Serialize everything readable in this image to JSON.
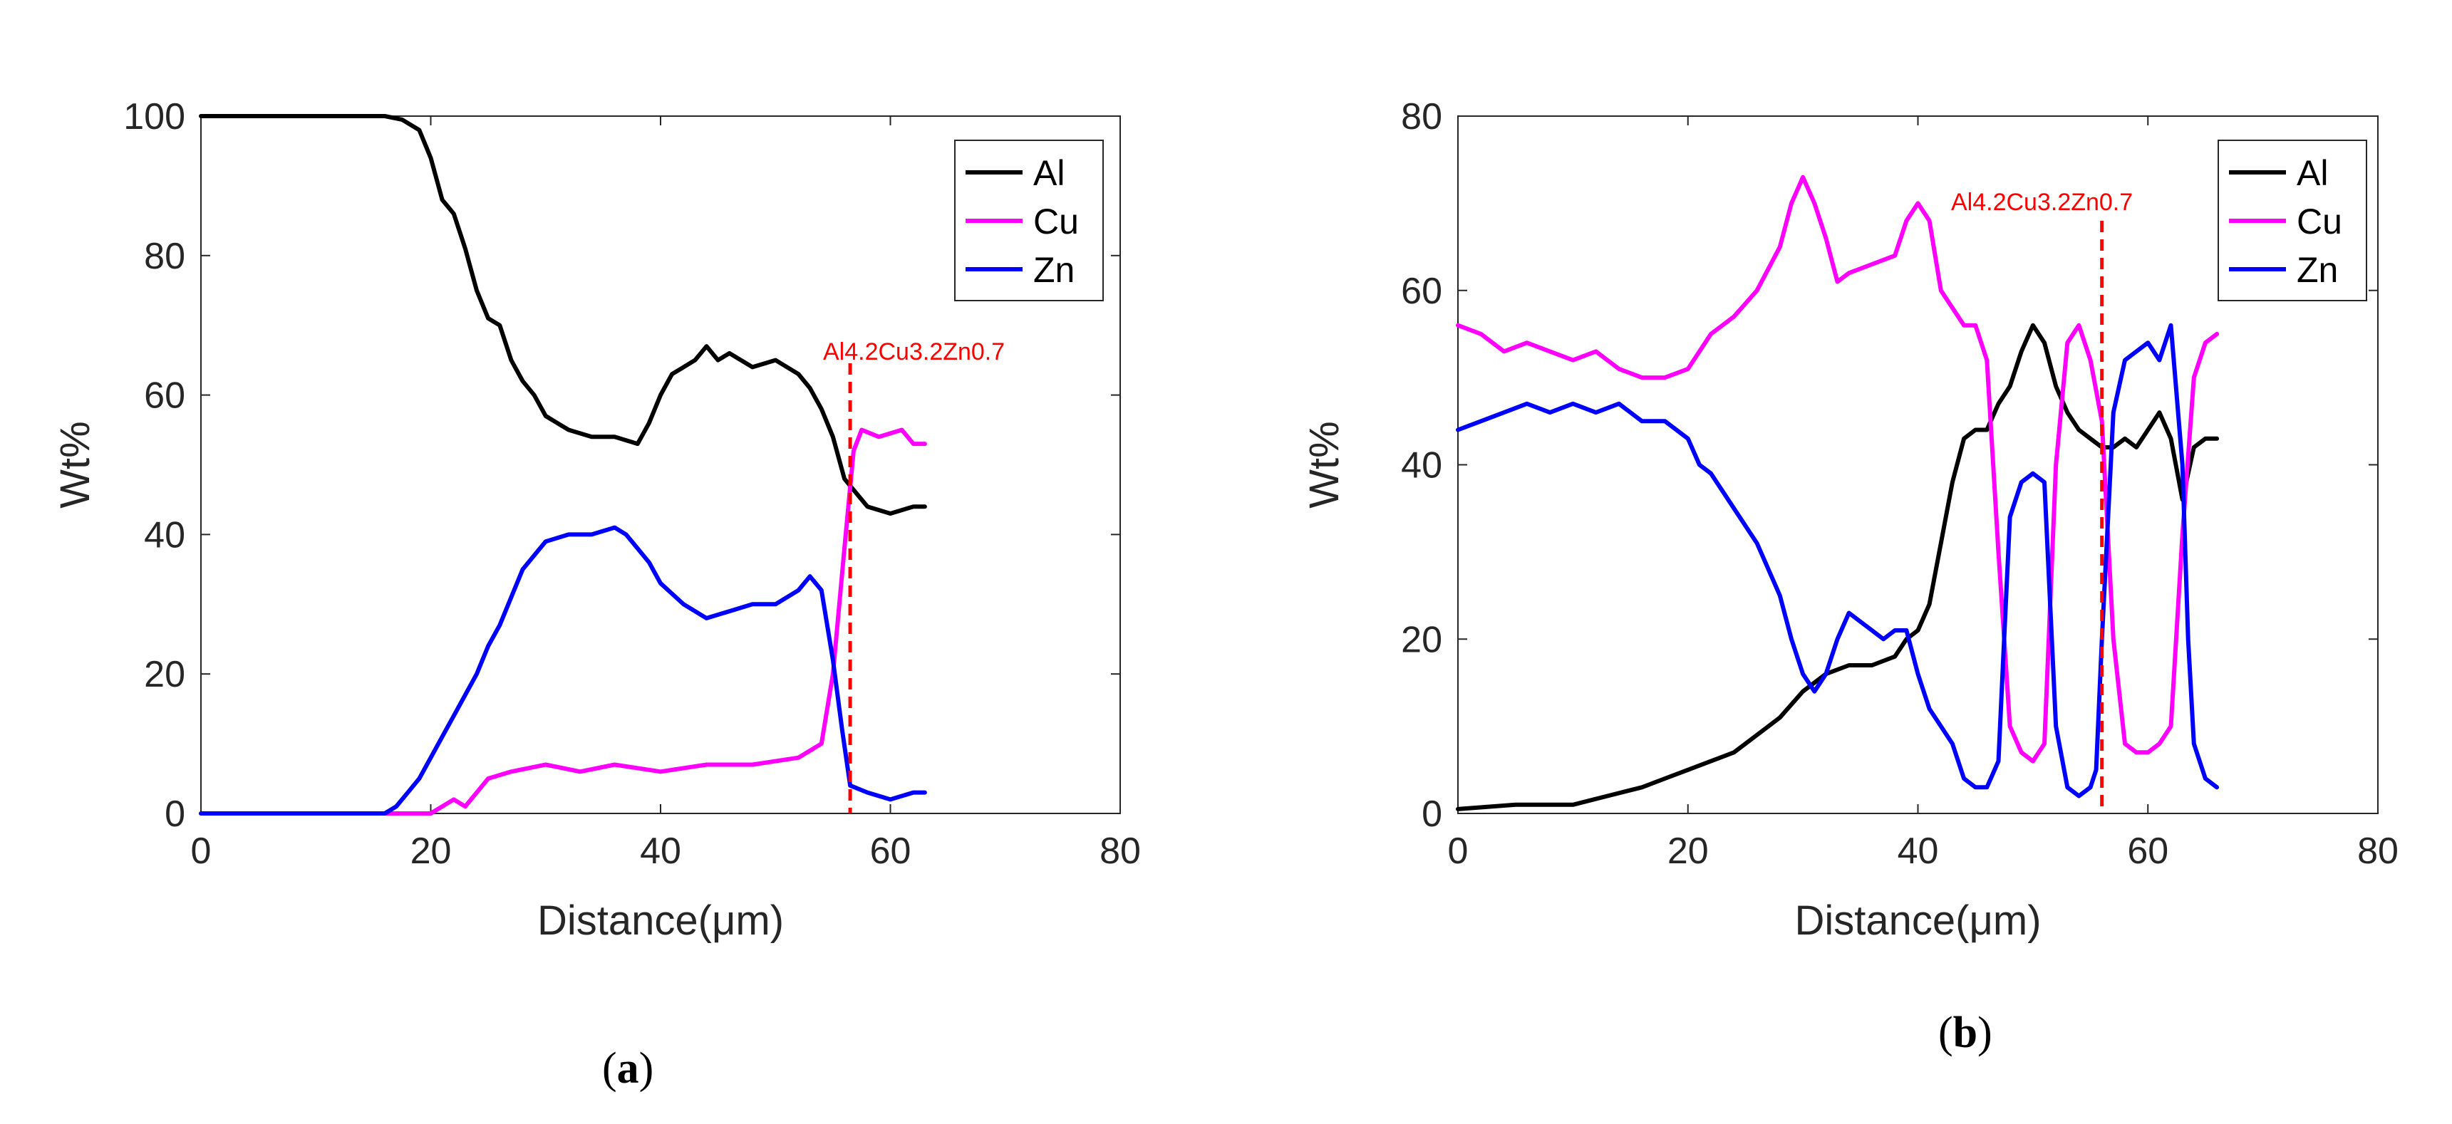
{
  "chart_data": [
    {
      "type": "line",
      "panel_label": "a",
      "caption": "(a)",
      "xlabel": "Distance(μm)",
      "ylabel": "Wt%",
      "xlim": [
        0,
        80
      ],
      "ylim": [
        0,
        100
      ],
      "xticks": [
        "0",
        "20",
        "40",
        "60",
        "80"
      ],
      "yticks": [
        "0",
        "20",
        "40",
        "60",
        "80",
        "100"
      ],
      "legend_position": "top-right",
      "annotation": {
        "text": "Al4.2Cu3.2Zn0.7",
        "x": 56.5,
        "color": "#ff0000"
      },
      "series": [
        {
          "name": "Al",
          "color": "#000000",
          "points": [
            [
              0,
              100
            ],
            [
              16,
              100
            ],
            [
              17.5,
              99.5
            ],
            [
              19,
              98
            ],
            [
              20,
              94
            ],
            [
              21,
              88
            ],
            [
              22,
              86
            ],
            [
              23,
              81
            ],
            [
              24,
              75
            ],
            [
              25,
              71
            ],
            [
              26,
              70
            ],
            [
              27,
              65
            ],
            [
              28,
              62
            ],
            [
              29,
              60
            ],
            [
              30,
              57
            ],
            [
              31,
              56
            ],
            [
              32,
              55
            ],
            [
              34,
              54
            ],
            [
              36,
              54
            ],
            [
              38,
              53
            ],
            [
              39,
              56
            ],
            [
              40,
              60
            ],
            [
              41,
              63
            ],
            [
              42,
              64
            ],
            [
              43,
              65
            ],
            [
              44,
              67
            ],
            [
              45,
              65
            ],
            [
              46,
              66
            ],
            [
              48,
              64
            ],
            [
              50,
              65
            ],
            [
              52,
              63
            ],
            [
              53,
              61
            ],
            [
              54,
              58
            ],
            [
              55,
              54
            ],
            [
              56,
              48
            ],
            [
              57,
              46
            ],
            [
              58,
              44
            ],
            [
              60,
              43
            ],
            [
              62,
              44
            ],
            [
              63,
              44
            ]
          ]
        },
        {
          "name": "Cu",
          "color": "#ff00ff",
          "points": [
            [
              0,
              0
            ],
            [
              17,
              0
            ],
            [
              20,
              0
            ],
            [
              21,
              1
            ],
            [
              22,
              2
            ],
            [
              23,
              1
            ],
            [
              24,
              3
            ],
            [
              25,
              5
            ],
            [
              27,
              6
            ],
            [
              30,
              7
            ],
            [
              33,
              6
            ],
            [
              36,
              7
            ],
            [
              40,
              6
            ],
            [
              44,
              7
            ],
            [
              48,
              7
            ],
            [
              52,
              8
            ],
            [
              54,
              10
            ],
            [
              55,
              20
            ],
            [
              56,
              38
            ],
            [
              56.8,
              52
            ],
            [
              57.5,
              55
            ],
            [
              59,
              54
            ],
            [
              61,
              55
            ],
            [
              62,
              53
            ],
            [
              63,
              53
            ]
          ]
        },
        {
          "name": "Zn",
          "color": "#0000ff",
          "points": [
            [
              0,
              0
            ],
            [
              16,
              0
            ],
            [
              17,
              1
            ],
            [
              18,
              3
            ],
            [
              19,
              5
            ],
            [
              20,
              8
            ],
            [
              21,
              11
            ],
            [
              22,
              14
            ],
            [
              23,
              17
            ],
            [
              24,
              20
            ],
            [
              25,
              24
            ],
            [
              26,
              27
            ],
            [
              27,
              31
            ],
            [
              28,
              35
            ],
            [
              29,
              37
            ],
            [
              30,
              39
            ],
            [
              32,
              40
            ],
            [
              34,
              40
            ],
            [
              36,
              41
            ],
            [
              37,
              40
            ],
            [
              38,
              38
            ],
            [
              39,
              36
            ],
            [
              40,
              33
            ],
            [
              42,
              30
            ],
            [
              44,
              28
            ],
            [
              46,
              29
            ],
            [
              48,
              30
            ],
            [
              50,
              30
            ],
            [
              52,
              32
            ],
            [
              53,
              34
            ],
            [
              54,
              32
            ],
            [
              55,
              22
            ],
            [
              55.8,
              12
            ],
            [
              56.5,
              4
            ],
            [
              58,
              3
            ],
            [
              60,
              2
            ],
            [
              62,
              3
            ],
            [
              63,
              3
            ]
          ]
        }
      ]
    },
    {
      "type": "line",
      "panel_label": "b",
      "caption": "(b)",
      "xlabel": "Distance(μm)",
      "ylabel": "Wt%",
      "xlim": [
        0,
        80
      ],
      "ylim": [
        0,
        80
      ],
      "xticks": [
        "0",
        "20",
        "40",
        "60",
        "80"
      ],
      "yticks": [
        "0",
        "20",
        "40",
        "60",
        "80"
      ],
      "legend_position": "top-right",
      "annotation": {
        "text": "Al4.2Cu3.2Zn0.7",
        "x": 56,
        "color": "#ff0000"
      },
      "series": [
        {
          "name": "Al",
          "color": "#000000",
          "points": [
            [
              0,
              0.5
            ],
            [
              5,
              1
            ],
            [
              10,
              1
            ],
            [
              13,
              2
            ],
            [
              16,
              3
            ],
            [
              18,
              4
            ],
            [
              20,
              5
            ],
            [
              22,
              6
            ],
            [
              24,
              7
            ],
            [
              26,
              9
            ],
            [
              28,
              11
            ],
            [
              30,
              14
            ],
            [
              32,
              16
            ],
            [
              34,
              17
            ],
            [
              36,
              17
            ],
            [
              38,
              18
            ],
            [
              39,
              20
            ],
            [
              40,
              21
            ],
            [
              41,
              24
            ],
            [
              42,
              31
            ],
            [
              43,
              38
            ],
            [
              44,
              43
            ],
            [
              45,
              44
            ],
            [
              46,
              44
            ],
            [
              47,
              47
            ],
            [
              48,
              49
            ],
            [
              49,
              53
            ],
            [
              50,
              56
            ],
            [
              51,
              54
            ],
            [
              52,
              49
            ],
            [
              53,
              46
            ],
            [
              54,
              44
            ],
            [
              55,
              43
            ],
            [
              56,
              42
            ],
            [
              57,
              42
            ],
            [
              58,
              43
            ],
            [
              59,
              42
            ],
            [
              60,
              44
            ],
            [
              61,
              46
            ],
            [
              62,
              43
            ],
            [
              63,
              36
            ],
            [
              64,
              42
            ],
            [
              65,
              43
            ],
            [
              66,
              43
            ]
          ]
        },
        {
          "name": "Cu",
          "color": "#ff00ff",
          "points": [
            [
              0,
              56
            ],
            [
              2,
              55
            ],
            [
              4,
              53
            ],
            [
              6,
              54
            ],
            [
              8,
              53
            ],
            [
              10,
              52
            ],
            [
              12,
              53
            ],
            [
              14,
              51
            ],
            [
              16,
              50
            ],
            [
              18,
              50
            ],
            [
              20,
              51
            ],
            [
              22,
              55
            ],
            [
              24,
              57
            ],
            [
              26,
              60
            ],
            [
              28,
              65
            ],
            [
              29,
              70
            ],
            [
              30,
              73
            ],
            [
              31,
              70
            ],
            [
              32,
              66
            ],
            [
              33,
              61
            ],
            [
              34,
              62
            ],
            [
              36,
              63
            ],
            [
              38,
              64
            ],
            [
              39,
              68
            ],
            [
              40,
              70
            ],
            [
              41,
              68
            ],
            [
              42,
              60
            ],
            [
              43,
              58
            ],
            [
              44,
              56
            ],
            [
              45,
              56
            ],
            [
              46,
              52
            ],
            [
              47,
              30
            ],
            [
              48,
              10
            ],
            [
              49,
              7
            ],
            [
              50,
              6
            ],
            [
              51,
              8
            ],
            [
              52,
              40
            ],
            [
              53,
              54
            ],
            [
              54,
              56
            ],
            [
              55,
              52
            ],
            [
              56,
              45
            ],
            [
              57,
              20
            ],
            [
              58,
              8
            ],
            [
              59,
              7
            ],
            [
              60,
              7
            ],
            [
              61,
              8
            ],
            [
              62,
              10
            ],
            [
              63,
              32
            ],
            [
              64,
              50
            ],
            [
              65,
              54
            ],
            [
              66,
              55
            ]
          ]
        },
        {
          "name": "Zn",
          "color": "#0000ff",
          "points": [
            [
              0,
              44
            ],
            [
              2,
              45
            ],
            [
              4,
              46
            ],
            [
              6,
              47
            ],
            [
              8,
              46
            ],
            [
              10,
              47
            ],
            [
              12,
              46
            ],
            [
              14,
              47
            ],
            [
              16,
              45
            ],
            [
              18,
              45
            ],
            [
              20,
              43
            ],
            [
              21,
              40
            ],
            [
              22,
              39
            ],
            [
              24,
              35
            ],
            [
              26,
              31
            ],
            [
              28,
              25
            ],
            [
              29,
              20
            ],
            [
              30,
              16
            ],
            [
              31,
              14
            ],
            [
              32,
              16
            ],
            [
              33,
              20
            ],
            [
              34,
              23
            ],
            [
              35,
              22
            ],
            [
              36,
              21
            ],
            [
              37,
              20
            ],
            [
              38,
              21
            ],
            [
              39,
              21
            ],
            [
              40,
              16
            ],
            [
              41,
              12
            ],
            [
              42,
              10
            ],
            [
              43,
              8
            ],
            [
              44,
              4
            ],
            [
              45,
              3
            ],
            [
              46,
              3
            ],
            [
              47,
              6
            ],
            [
              47.5,
              20
            ],
            [
              48,
              34
            ],
            [
              49,
              38
            ],
            [
              50,
              39
            ],
            [
              51,
              38
            ],
            [
              52,
              10
            ],
            [
              53,
              3
            ],
            [
              54,
              2
            ],
            [
              55,
              3
            ],
            [
              55.5,
              5
            ],
            [
              56,
              20
            ],
            [
              57,
              46
            ],
            [
              58,
              52
            ],
            [
              59,
              53
            ],
            [
              60,
              54
            ],
            [
              61,
              52
            ],
            [
              62,
              56
            ],
            [
              63,
              40
            ],
            [
              63.5,
              20
            ],
            [
              64,
              8
            ],
            [
              65,
              4
            ],
            [
              66,
              3
            ]
          ]
        }
      ]
    }
  ]
}
